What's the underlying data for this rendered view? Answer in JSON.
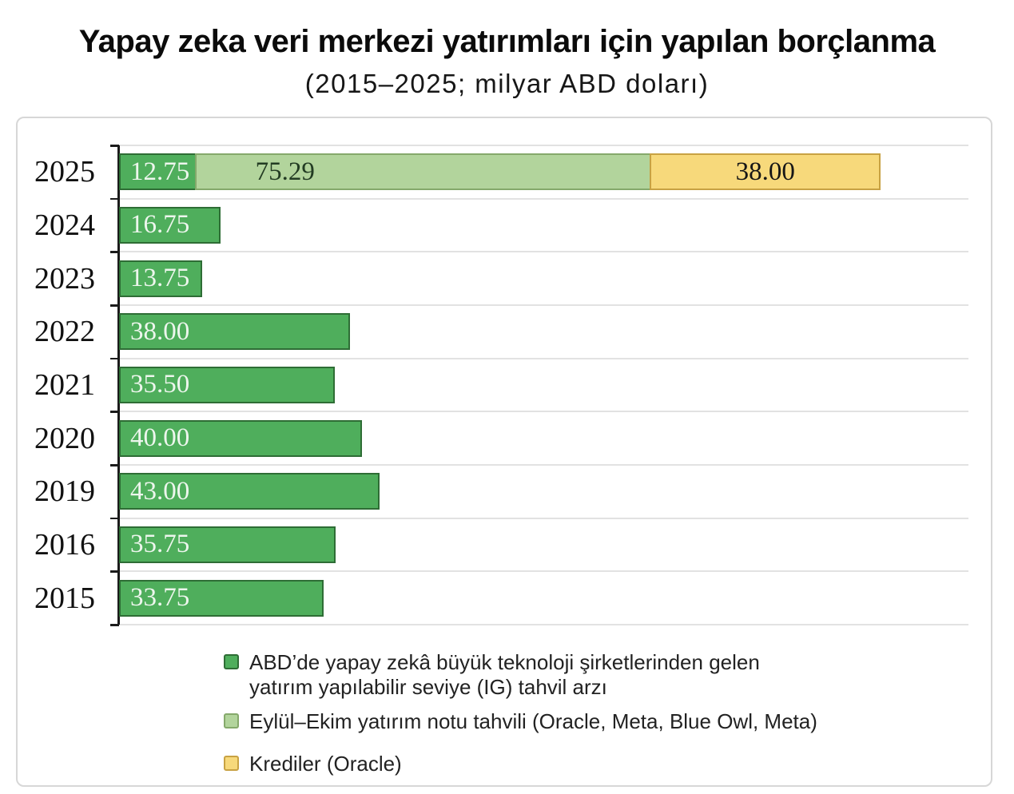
{
  "page": {
    "title": "Yapay zeka veri merkezi yatırımları için yapılan borçlanma",
    "subtitle": "(2015–2025; milyar ABD doları)"
  },
  "chart_data": {
    "type": "bar",
    "orientation": "horizontal",
    "title": "Yapay zeka veri merkezi yatırımları için yapılan borçlanma",
    "subtitle": "(2015–2025; milyar ABD doları)",
    "xlabel": "",
    "ylabel": "",
    "unit": "milyar ABD doları",
    "xlim": [
      0,
      140
    ],
    "grid": true,
    "legend_position": "bottom",
    "value_label_decimals": 2,
    "categories": [
      "2025",
      "2024",
      "2023",
      "2022",
      "2021",
      "2020",
      "2019",
      "2016",
      "2015"
    ],
    "series": [
      {
        "name": "ABD’de yapay zekâ büyük teknoloji şirketlerinden gelen yatırım yapılabilir seviye (IG) tahvil arzı",
        "color": "#4fae5c",
        "border_color": "#2e6d35",
        "values": [
          12.75,
          16.75,
          13.75,
          38.0,
          35.5,
          40.0,
          43.0,
          35.75,
          33.75
        ]
      },
      {
        "name": "Eylül–Ekim yatırım notu tahvili (Oracle, Meta, Blue Owl, Meta)",
        "color": "#b2d49c",
        "border_color": "#85a96b",
        "values": [
          75.29,
          0,
          0,
          0,
          0,
          0,
          0,
          0,
          0
        ]
      },
      {
        "name": "Krediler (Oracle)",
        "color": "#f7d97b",
        "border_color": "#c8a243",
        "values": [
          38.0,
          0,
          0,
          0,
          0,
          0,
          0,
          0,
          0
        ]
      }
    ]
  },
  "legend": {
    "items": [
      {
        "label": "ABD’de yapay zekâ büyük teknoloji şirketlerinden gelen yatırım yapılabilir seviye (IG) tahvil arzı",
        "color": "#4fae5c",
        "border_color": "#2e6d35"
      },
      {
        "label": "Eylül–Ekim yatırım notu tahvili (Oracle, Meta, Blue Owl, Meta)",
        "color": "#b2d49c",
        "border_color": "#85a96b"
      },
      {
        "label": "Krediler (Oracle)",
        "color": "#f7d97b",
        "border_color": "#c8a243"
      }
    ]
  }
}
